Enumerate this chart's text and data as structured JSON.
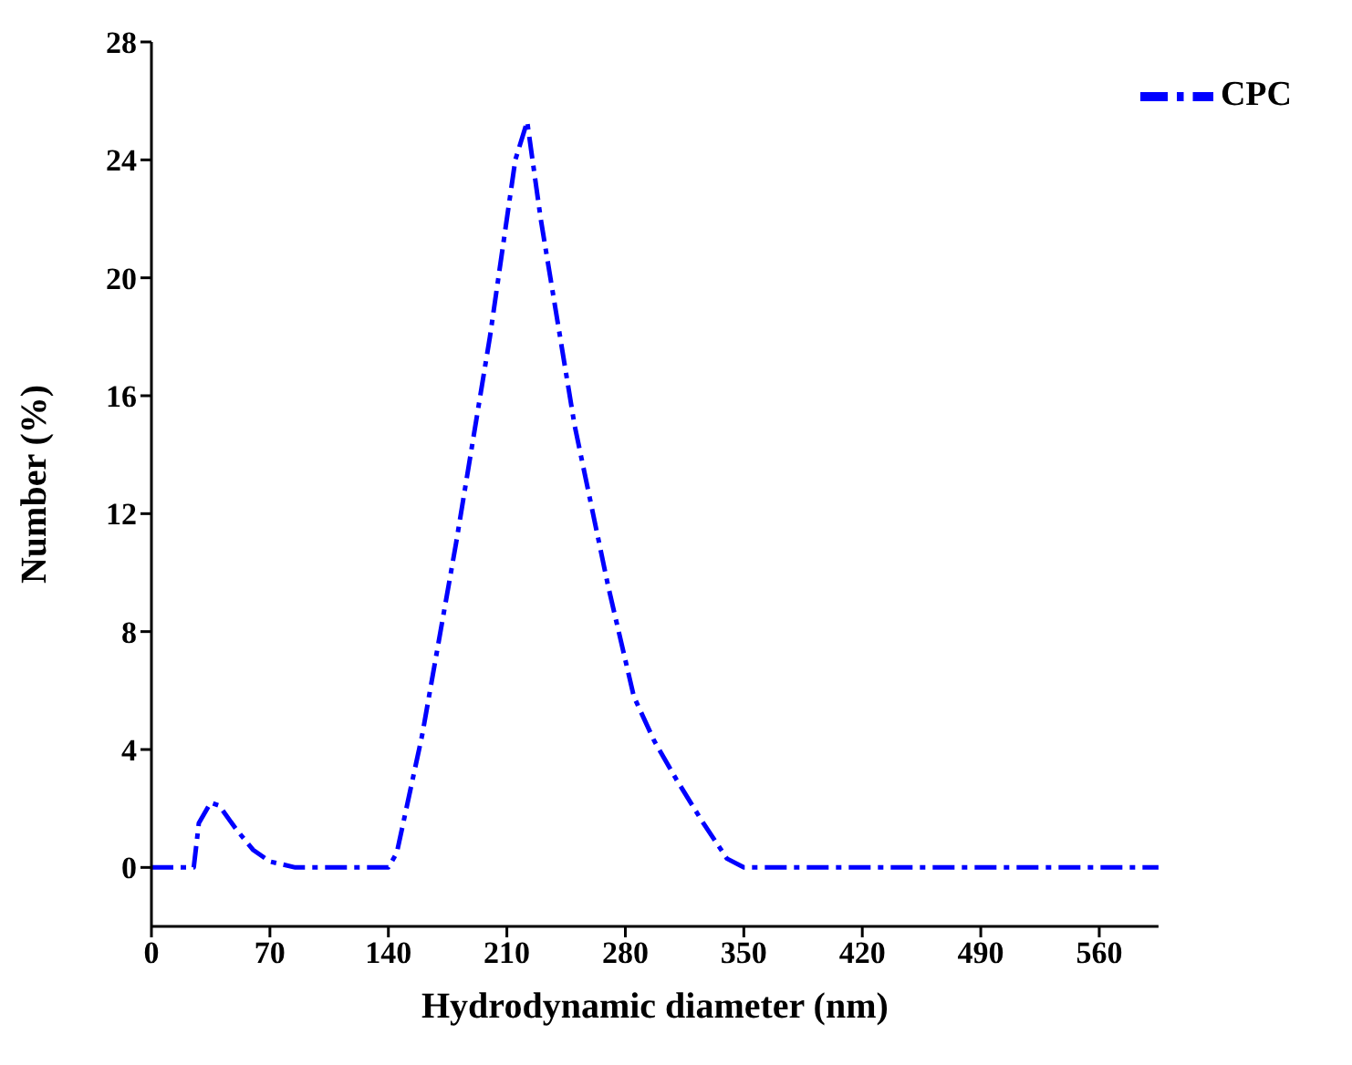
{
  "chart_data": {
    "type": "line",
    "xlabel": "Hydrodynamic diameter (nm)",
    "ylabel": "Number (%)",
    "xlim": [
      0,
      595
    ],
    "xticks": [
      0,
      70,
      140,
      210,
      280,
      350,
      420,
      490,
      560
    ],
    "ylim": [
      -2,
      28
    ],
    "yticks": [
      0,
      4,
      8,
      12,
      16,
      20,
      24,
      28
    ],
    "grid": false,
    "legend": "top right",
    "line_style": "dashed",
    "marker": "none",
    "series": [
      {
        "name": "CPC",
        "color": "#0000ff",
        "x": [
          0,
          25,
          28,
          35,
          40,
          50,
          60,
          70,
          85,
          140,
          145,
          160,
          180,
          200,
          215,
          222,
          230,
          250,
          270,
          285,
          297,
          310,
          325,
          340,
          350,
          595
        ],
        "values": [
          0,
          0,
          1.5,
          2.2,
          2.1,
          1.3,
          0.6,
          0.2,
          0,
          0,
          0.5,
          4.5,
          11,
          18,
          24,
          25.3,
          22,
          15,
          9.5,
          5.8,
          4.3,
          3,
          1.6,
          0.3,
          0,
          0
        ]
      }
    ]
  }
}
